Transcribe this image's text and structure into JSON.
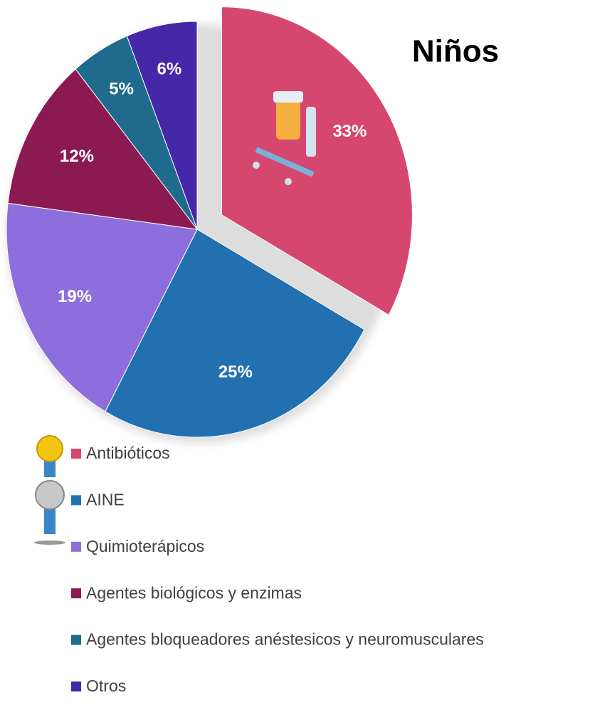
{
  "chart_data": {
    "type": "pie",
    "title": "Niños",
    "categories": [
      "Antibióticos",
      "AINE",
      "Quimioterápicos",
      "Agentes biológicos y enzimas",
      "Agentes bloqueadores anéstesicos y neuromusculares",
      "Otros"
    ],
    "values": [
      33,
      25,
      19,
      12,
      5,
      6
    ],
    "value_labels": [
      "33%",
      "25%",
      "19%",
      "12%",
      "5%",
      "6%"
    ],
    "colors": [
      "#d6476f",
      "#2270b0",
      "#8c6fdc",
      "#8c1a52",
      "#1f6b8e",
      "#4528a8"
    ],
    "legend": "bottom"
  }
}
